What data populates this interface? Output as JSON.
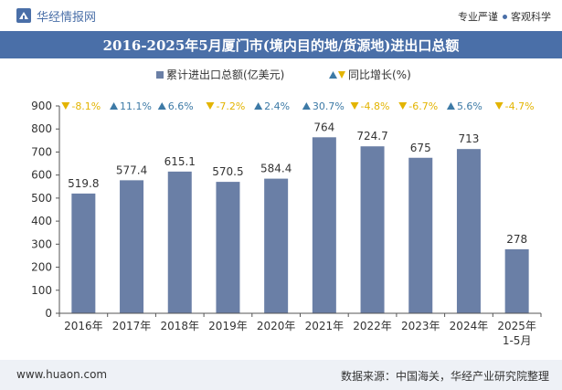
{
  "header": {
    "brand": "华经情报网",
    "slogan_left": "专业严谨",
    "slogan_right": "客观科学"
  },
  "footer": {
    "website": "www.huaon.com",
    "source": "数据来源：中国海关，华经产业研究院整理"
  },
  "colors": {
    "brand_blue": "#4a6fa8",
    "bar": "#6a7fa6",
    "up": "#3d7aa6",
    "down": "#e3b400",
    "footer_bg": "#eef1f6"
  },
  "chart_data": {
    "type": "bar",
    "title": "2016-2025年5月厦门市(境内目的地/货源地)进出口总额",
    "categories": [
      "2016年",
      "2017年",
      "2018年",
      "2019年",
      "2020年",
      "2021年",
      "2022年",
      "2023年",
      "2024年",
      "2025年\n1-5月"
    ],
    "series": [
      {
        "name": "累计进出口总额(亿美元)",
        "values": [
          519.8,
          577.4,
          615.1,
          570.5,
          584.4,
          764,
          724.7,
          675,
          713,
          278
        ],
        "value_labels": [
          "519.8",
          "577.4",
          "615.1",
          "570.5",
          "584.4",
          "764",
          "724.7",
          "675",
          "713",
          "278"
        ]
      },
      {
        "name": "同比增长(%)",
        "values": [
          -8.1,
          11.1,
          6.6,
          -7.2,
          2.4,
          30.7,
          -4.8,
          -6.7,
          5.6,
          -4.7
        ],
        "value_labels": [
          "-8.1%",
          "11.1%",
          "6.6%",
          "-7.2%",
          "2.4%",
          "30.7%",
          "-4.8%",
          "-6.7%",
          "5.6%",
          "-4.7%"
        ]
      }
    ],
    "ylim": [
      0,
      900
    ],
    "yticks": [
      0,
      100,
      200,
      300,
      400,
      500,
      600,
      700,
      800,
      900
    ],
    "legend_position": "top-center",
    "grid": false
  }
}
